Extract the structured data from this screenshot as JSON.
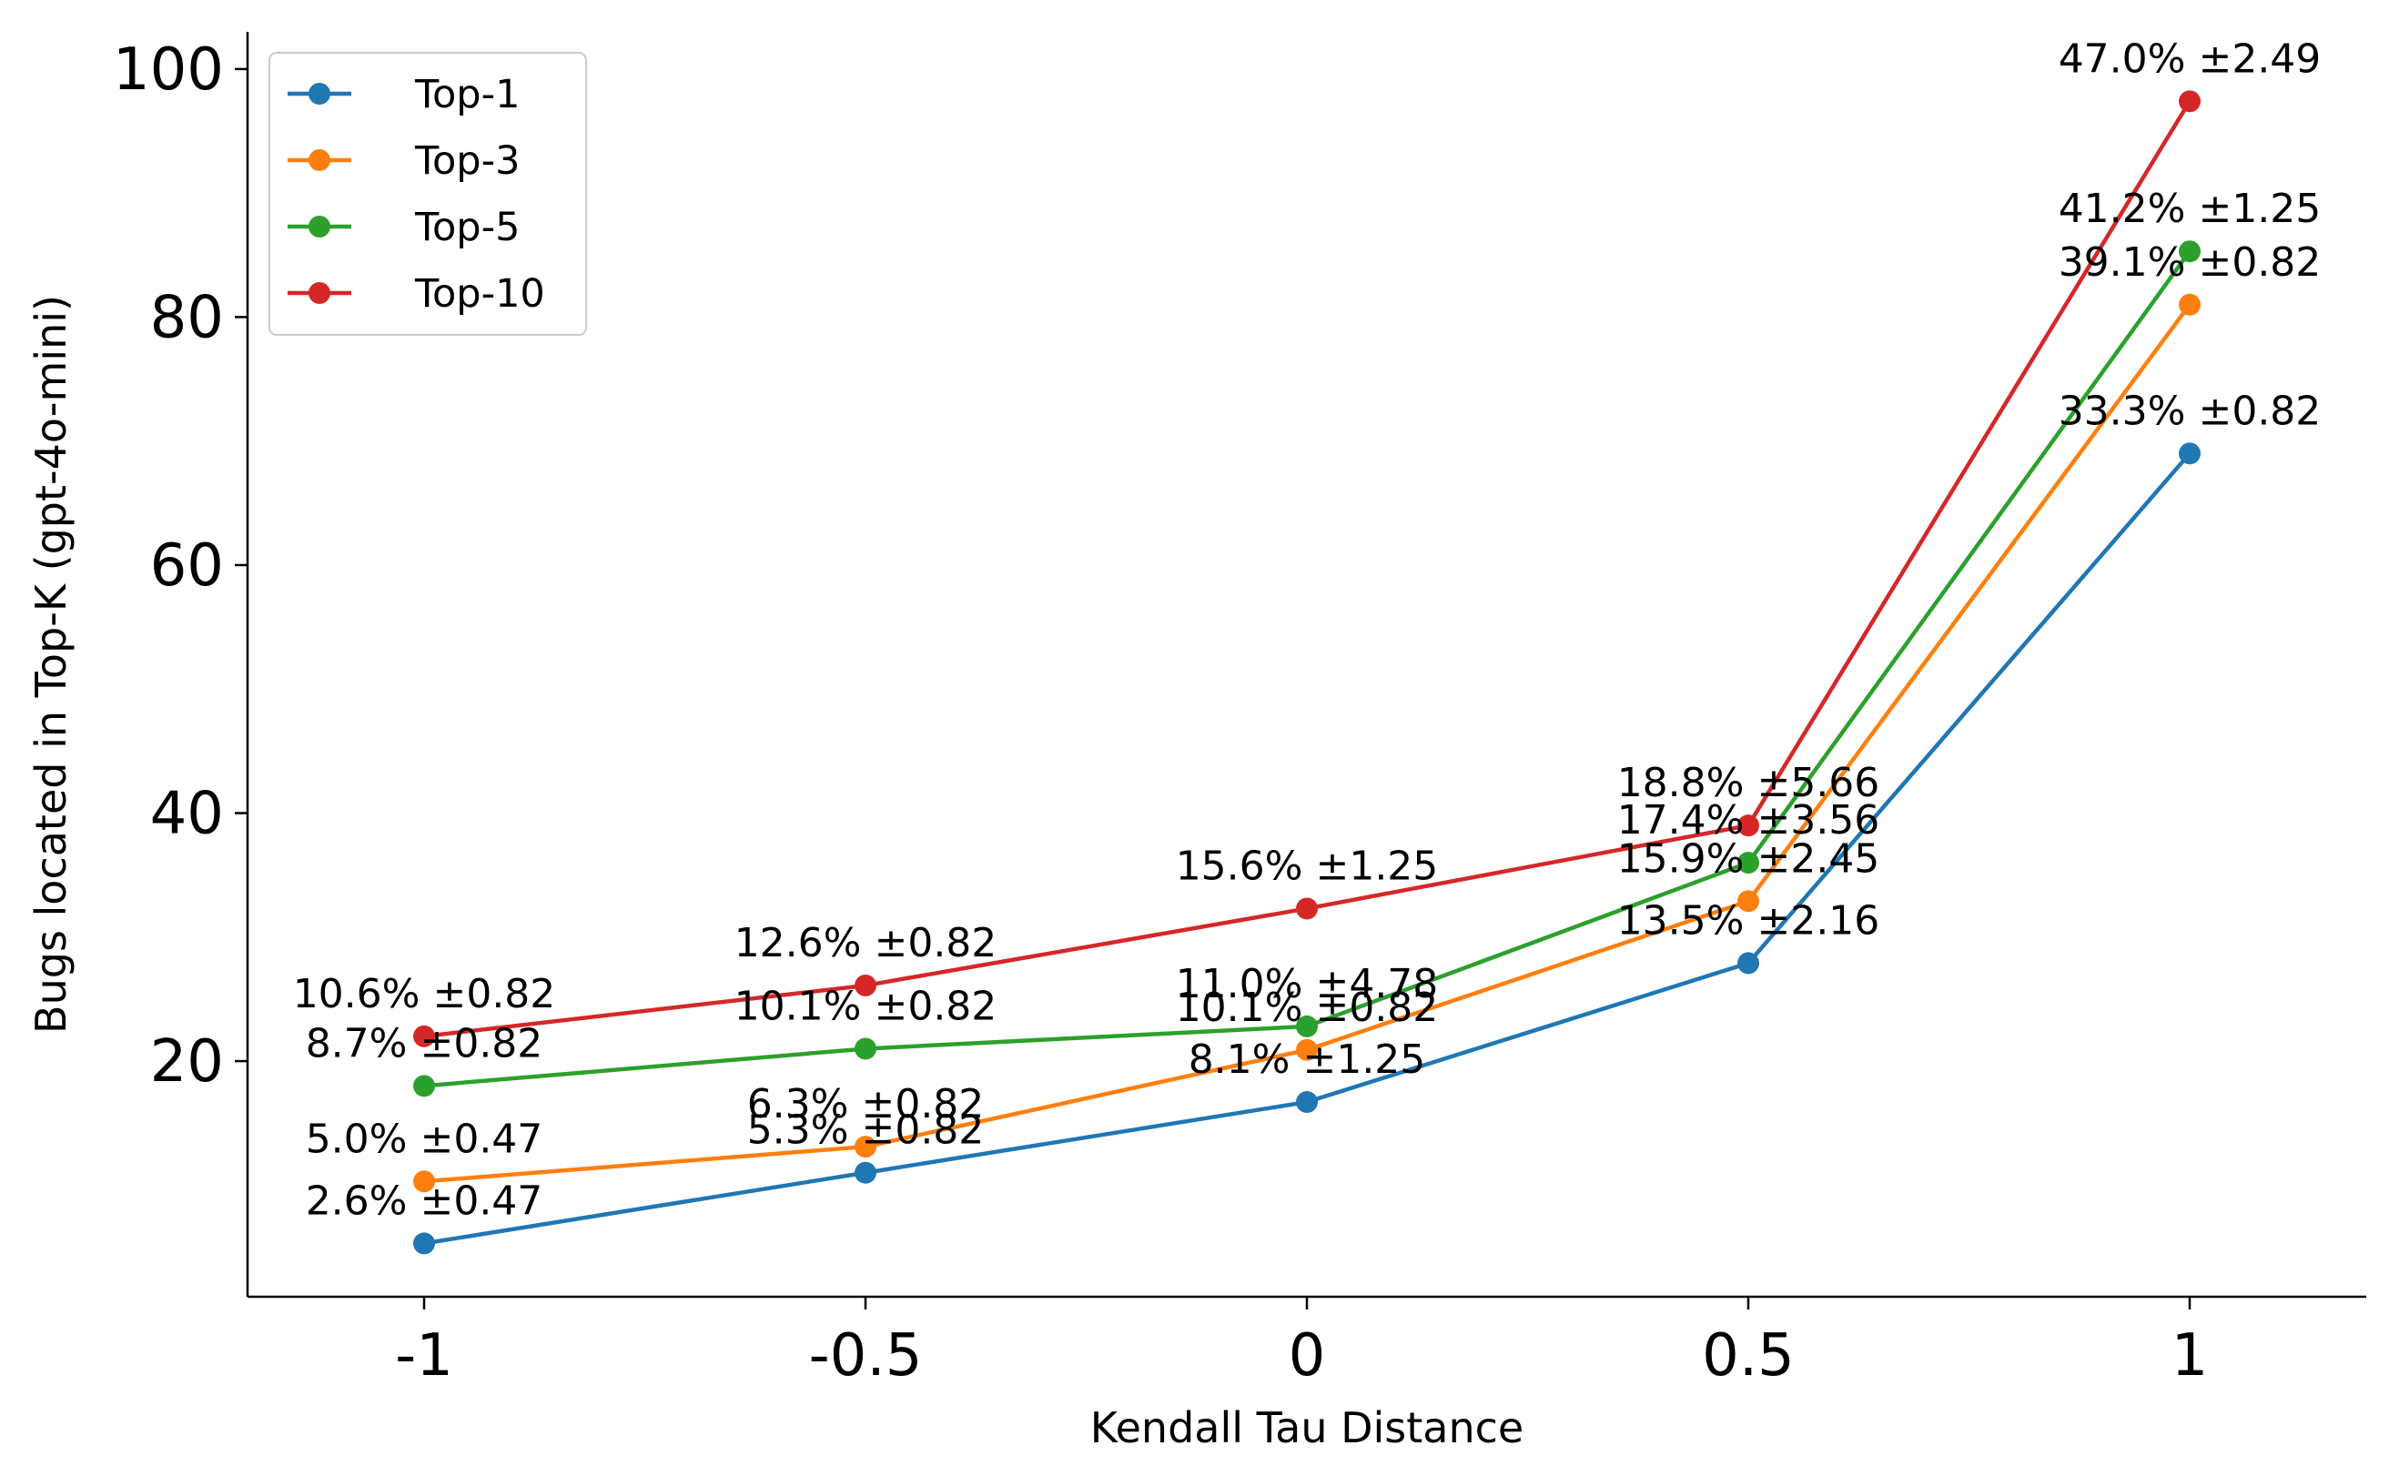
{
  "chart_data": {
    "type": "line",
    "title": "",
    "xlabel": "Kendall Tau Distance",
    "ylabel": "Bugs located in Top-K (gpt-4o-mini)",
    "categories": [
      "-1",
      "-0.5",
      "0",
      "0.5",
      "1"
    ],
    "x": [
      -1,
      -0.5,
      0,
      0.5,
      1
    ],
    "xlim": [
      -1.2,
      1.2
    ],
    "ylim": [
      1,
      103
    ],
    "yticks": [
      20,
      40,
      60,
      80,
      100
    ],
    "grid": false,
    "legend_position": "top-left",
    "series": [
      {
        "name": "Top-1",
        "color": "#1f77b4",
        "values": [
          5.3,
          11.0,
          16.7,
          27.9,
          69.0
        ],
        "labels": [
          "2.6% ±0.47",
          "5.3% ±0.82",
          "8.1% ±1.25",
          "13.5% ±2.16",
          "33.3% ±0.82"
        ]
      },
      {
        "name": "Top-3",
        "color": "#ff7f0e",
        "values": [
          10.3,
          13.1,
          20.9,
          32.9,
          81.0
        ],
        "labels": [
          "5.0% ±0.47",
          "6.3% ±0.82",
          "10.1% ±0.82",
          "15.9% ±2.45",
          "39.1% ±0.82"
        ]
      },
      {
        "name": "Top-5",
        "color": "#2ca02c",
        "values": [
          18.0,
          21.0,
          22.8,
          36.0,
          85.3
        ],
        "labels": [
          "8.7% ±0.82",
          "10.1% ±0.82",
          "11.0% ±4.78",
          "17.4% ±3.56",
          "41.2% ±1.25"
        ]
      },
      {
        "name": "Top-10",
        "color": "#d62728",
        "values": [
          22.0,
          26.1,
          32.3,
          39.0,
          97.4
        ],
        "labels": [
          "10.6% ±0.82",
          "12.6% ±0.82",
          "15.6% ±1.25",
          "18.8% ±5.66",
          "47.0% ±2.49"
        ]
      }
    ]
  }
}
